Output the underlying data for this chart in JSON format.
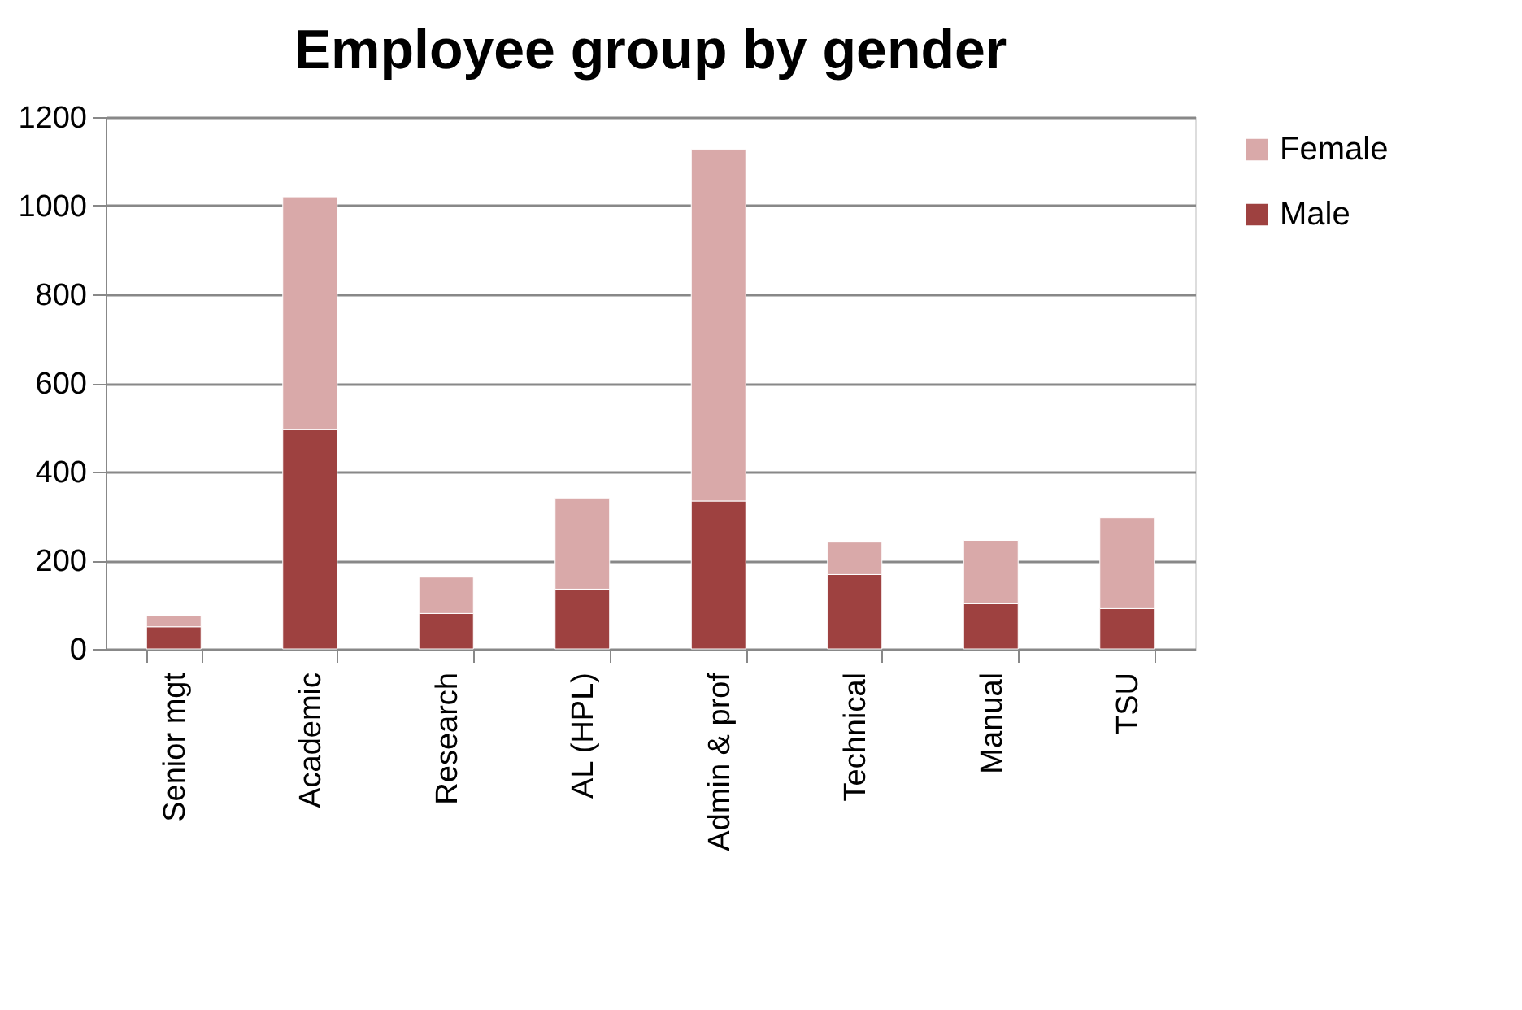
{
  "chart_data": {
    "type": "bar",
    "title": "Employee group by gender",
    "categories": [
      "Senior mgt",
      "Academic",
      "Research",
      "AL (HPL)",
      "Admin & prof",
      "Technical",
      "Manual",
      "TSU"
    ],
    "stacked": true,
    "series": [
      {
        "name": "Male",
        "color": "#9e4140",
        "values": [
          50,
          495,
          80,
          135,
          334,
          168,
          102,
          91
        ]
      },
      {
        "name": "Female",
        "color": "#d9a9a9",
        "values": [
          25,
          525,
          82,
          204,
          793,
          73,
          143,
          205
        ]
      }
    ],
    "ylim": [
      0,
      1200
    ],
    "yticks": [
      0,
      200,
      400,
      600,
      800,
      1000,
      1200
    ],
    "grid": "y",
    "legend": "right"
  }
}
